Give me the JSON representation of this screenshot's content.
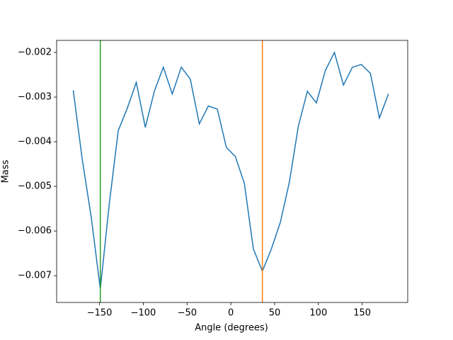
{
  "chart_data": {
    "type": "line",
    "xlabel": "Angle (degrees)",
    "ylabel": "Mass",
    "x": [
      -180,
      -169.7,
      -159.4,
      -149.1,
      -138.9,
      -128.6,
      -118.3,
      -108,
      -97.7,
      -87.4,
      -77.1,
      -66.9,
      -56.6,
      -46.3,
      -36,
      -25.7,
      -15.4,
      -5.1,
      5.1,
      15.4,
      25.7,
      36,
      46.3,
      56.6,
      66.9,
      77.1,
      87.4,
      97.7,
      108,
      118.3,
      128.6,
      138.9,
      149.1,
      159.4,
      169.7,
      180
    ],
    "series": [
      {
        "color": "#1f77b4",
        "values": [
          -0.00285,
          -0.0044,
          -0.0057,
          -0.0073,
          -0.0054,
          -0.00375,
          -0.00325,
          -0.00267,
          -0.00368,
          -0.00287,
          -0.00233,
          -0.00293,
          -0.00233,
          -0.0026,
          -0.0036,
          -0.0032,
          -0.00327,
          -0.00413,
          -0.00433,
          -0.00493,
          -0.0064,
          -0.0069,
          -0.0064,
          -0.0058,
          -0.0049,
          -0.00365,
          -0.00287,
          -0.00313,
          -0.0024,
          -0.002,
          -0.00273,
          -0.00233,
          -0.00227,
          -0.00247,
          -0.00347,
          -0.00293
        ]
      }
    ],
    "vlines": [
      {
        "x": -149.1,
        "color": "#2ca02c"
      },
      {
        "x": 36,
        "color": "#ff7f0e"
      }
    ],
    "xlim": [
      -199,
      202
    ],
    "xticks": [
      {
        "value": -150,
        "label": "−150"
      },
      {
        "value": -100,
        "label": "−100"
      },
      {
        "value": -50,
        "label": "−50"
      },
      0,
      50,
      100,
      150
    ],
    "ylim": [
      -0.0076,
      -0.00173
    ],
    "yticks": [
      {
        "value": -0.007,
        "label": "−0.007"
      },
      {
        "value": -0.006,
        "label": "−0.006"
      },
      {
        "value": -0.005,
        "label": "−0.005"
      },
      {
        "value": -0.004,
        "label": "−0.004"
      },
      {
        "value": -0.003,
        "label": "−0.003"
      },
      {
        "value": -0.002,
        "label": "−0.002"
      }
    ]
  }
}
